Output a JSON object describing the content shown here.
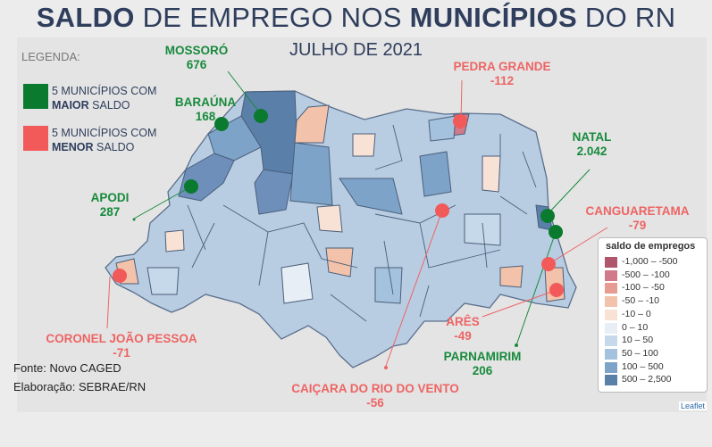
{
  "title": {
    "part1": "SALDO",
    "part2": " DE EMPREGO NOS ",
    "part3": "MUNICÍPIOS",
    "part4": " DO RN"
  },
  "subtitle": "JULHO DE 2021",
  "legend": {
    "heading": "LEGENDA:",
    "top_line1": "5 MUNICÍPIOS COM",
    "top_bold": "MAIOR",
    "top_rest": " SALDO",
    "bottom_line1": "5 MUNICÍPIOS COM",
    "bottom_bold": "MENOR",
    "bottom_rest": " SALDO",
    "top_color": "#0a7a2e",
    "bottom_color": "#f25a5a"
  },
  "top_cities": [
    {
      "name": "MOSSORÓ",
      "value": "676"
    },
    {
      "name": "BARAÚNA",
      "value": "168"
    },
    {
      "name": "APODI",
      "value": "287"
    },
    {
      "name": "NATAL",
      "value": "2.042"
    },
    {
      "name": "PARNAMIRIM",
      "value": "206"
    }
  ],
  "bottom_cities": [
    {
      "name": "PEDRA GRANDE",
      "value": "-112"
    },
    {
      "name": "CANGUARETAMA",
      "value": "-79"
    },
    {
      "name": "ARÊS",
      "value": "-49"
    },
    {
      "name": "CAIÇARA DO RIO DO VENTO",
      "value": "-56"
    },
    {
      "name": "CORONEL JOÃO PESSOA",
      "value": "-71"
    }
  ],
  "scale": {
    "title": "saldo de empregos",
    "items": [
      {
        "label": "-1,000 – -500",
        "color": "#b0566c"
      },
      {
        "label": "-500 – -100",
        "color": "#d07a8a"
      },
      {
        "label": "-100 – -50",
        "color": "#e69b93"
      },
      {
        "label": "-50 – -10",
        "color": "#f2c2aa"
      },
      {
        "label": "-10 – 0",
        "color": "#f8e2d5"
      },
      {
        "label": "0 – 10",
        "color": "#e8eef5"
      },
      {
        "label": "10 – 50",
        "color": "#c6d9ea"
      },
      {
        "label": "50 – 100",
        "color": "#a4c2de"
      },
      {
        "label": "100 – 500",
        "color": "#7ea3c9"
      },
      {
        "label": "500 – 2,500",
        "color": "#5a7fa8"
      }
    ]
  },
  "footer": {
    "source": "Fonte: Novo CAGED",
    "author": "Elaboração: SEBRAE/RN"
  },
  "attribution": "Leaflet"
}
